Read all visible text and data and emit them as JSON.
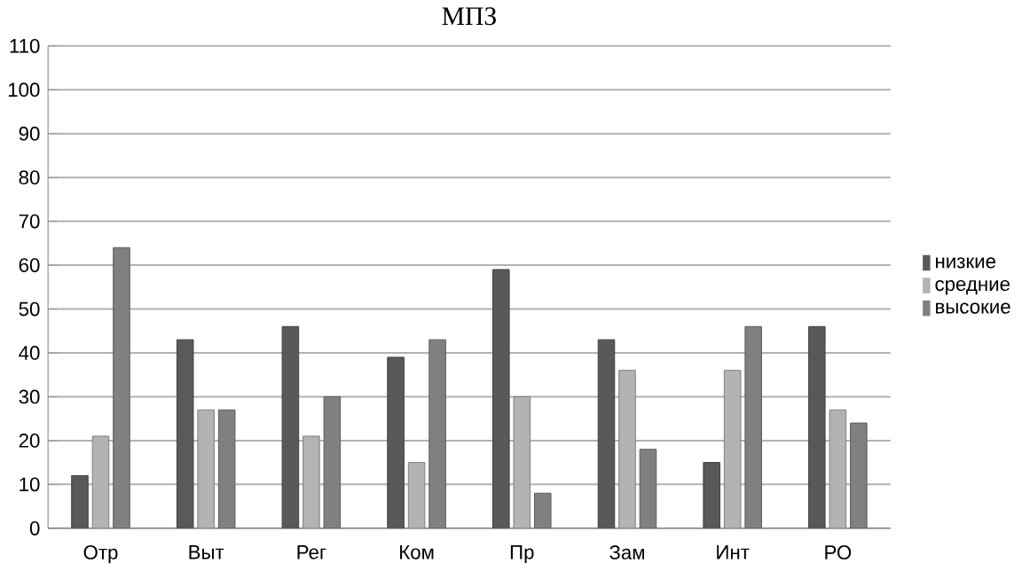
{
  "chart_data": {
    "type": "bar",
    "title": "МПЗ",
    "categories": [
      "Отр",
      "Выт",
      "Рег",
      "Ком",
      "Пр",
      "Зам",
      "Инт",
      "РО"
    ],
    "series": [
      {
        "name": "низкие",
        "color": "#595959",
        "values": [
          12,
          43,
          46,
          39,
          59,
          43,
          15,
          46
        ]
      },
      {
        "name": "средние",
        "color": "#b3b3b3",
        "values": [
          21,
          27,
          21,
          15,
          30,
          36,
          36,
          27
        ]
      },
      {
        "name": "высокие",
        "color": "#808080",
        "values": [
          64,
          27,
          30,
          43,
          8,
          18,
          46,
          24
        ]
      }
    ],
    "ylim": [
      0,
      110
    ],
    "yticks": [
      0,
      10,
      20,
      30,
      40,
      50,
      60,
      70,
      80,
      90,
      100,
      110
    ],
    "grid": "y",
    "legend": "right"
  }
}
